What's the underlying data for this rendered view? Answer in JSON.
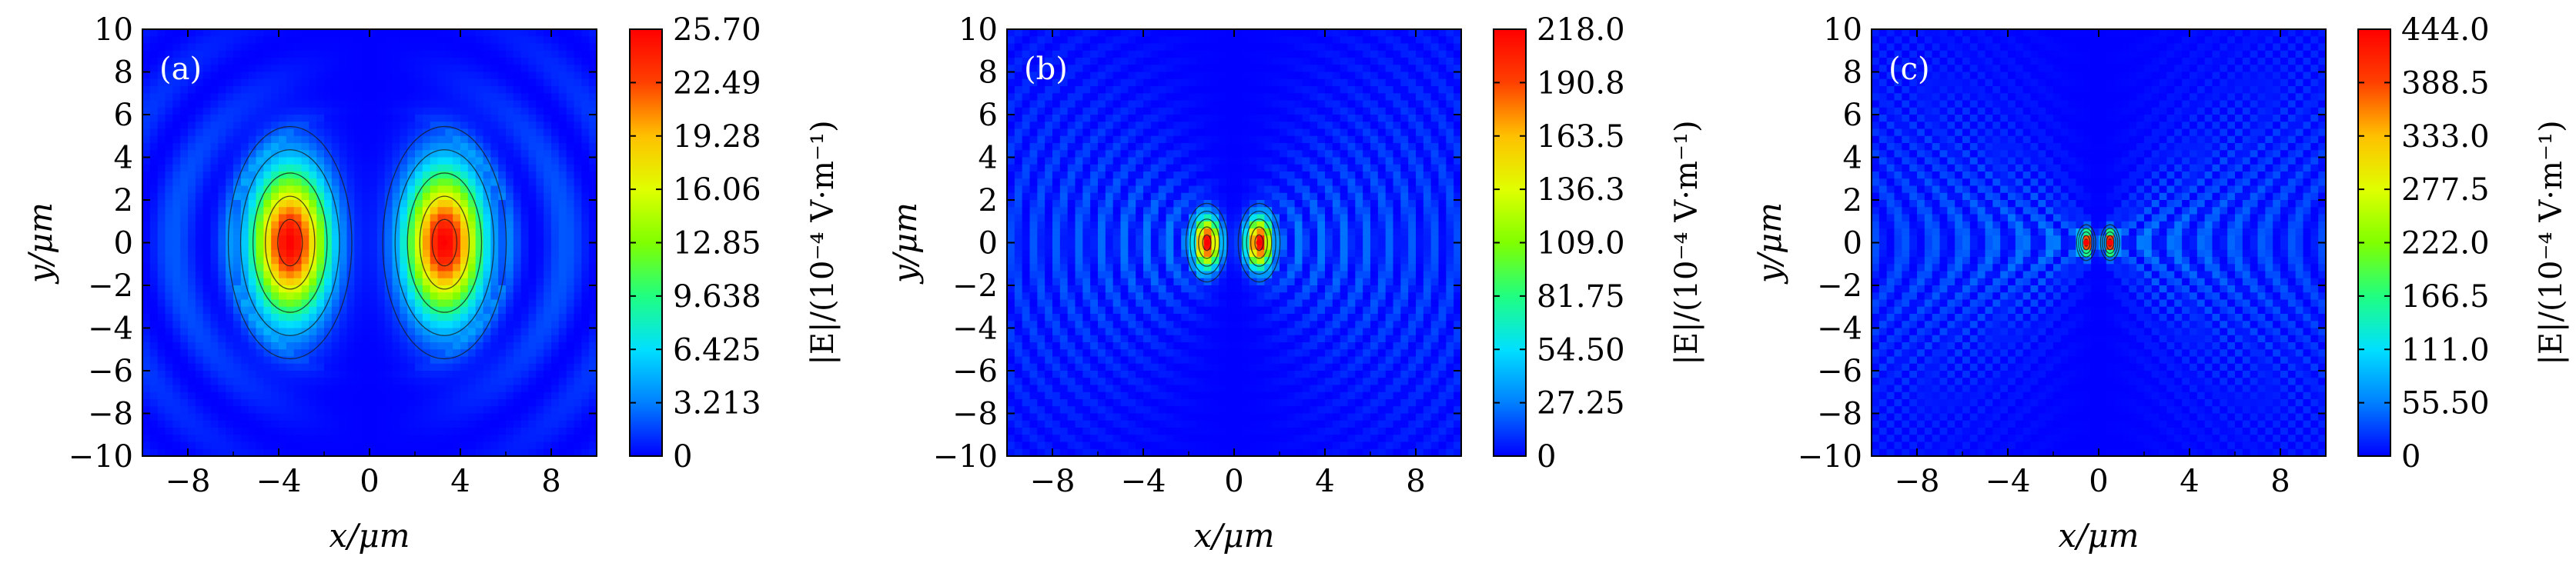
{
  "colors": {
    "colormap": [
      "#0000ff",
      "#0080ff",
      "#00e0ff",
      "#20ff80",
      "#80ff00",
      "#e0ff00",
      "#ffc000",
      "#ff4000",
      "#ff0000"
    ],
    "contour_line": "#1a1a1a"
  },
  "chart_data": [
    {
      "type": "heatmap",
      "panel_label": "(a)",
      "xlabel": "x/μm",
      "ylabel": "y/μm",
      "xlim": [
        -10,
        10
      ],
      "ylim": [
        -10,
        10
      ],
      "xticks": [
        "−8",
        "−4",
        "0",
        "4",
        "8"
      ],
      "yticks": [
        "10",
        "8",
        "6",
        "4",
        "2",
        "0",
        "−2",
        "−4",
        "−6",
        "−8",
        "−10"
      ],
      "colorbar": {
        "label": "|E|/(10⁻⁴ V·m⁻¹)",
        "min": 0,
        "max": 25.7,
        "ticks": [
          "25.70",
          "22.49",
          "19.28",
          "16.06",
          "12.85",
          "9.638",
          "6.425",
          "3.213",
          "0"
        ]
      },
      "peaks": [
        {
          "x": -3.5,
          "y": 0,
          "value": 25.7
        },
        {
          "x": 3.3,
          "y": 0,
          "value": 25.7
        }
      ]
    },
    {
      "type": "heatmap",
      "panel_label": "(b)",
      "xlabel": "x/μm",
      "ylabel": "y/μm",
      "xlim": [
        -10,
        10
      ],
      "ylim": [
        -10,
        10
      ],
      "xticks": [
        "−8",
        "−4",
        "0",
        "4",
        "8"
      ],
      "yticks": [
        "10",
        "8",
        "6",
        "4",
        "2",
        "0",
        "−2",
        "−4",
        "−6",
        "−8",
        "−10"
      ],
      "colorbar": {
        "label": "|E|/(10⁻⁴ V·m⁻¹)",
        "min": 0,
        "max": 218.0,
        "ticks": [
          "218.0",
          "190.8",
          "163.5",
          "136.3",
          "109.0",
          "81.75",
          "54.50",
          "27.25",
          "0"
        ]
      },
      "peaks": [
        {
          "x": -1.2,
          "y": 0,
          "value": 218.0
        },
        {
          "x": 1.1,
          "y": 0,
          "value": 218.0
        }
      ]
    },
    {
      "type": "heatmap",
      "panel_label": "(c)",
      "xlabel": "x/μm",
      "ylabel": "y/μm",
      "xlim": [
        -10,
        10
      ],
      "ylim": [
        -10,
        10
      ],
      "xticks": [
        "−8",
        "−4",
        "0",
        "4",
        "8"
      ],
      "yticks": [
        "10",
        "8",
        "6",
        "4",
        "2",
        "0",
        "−2",
        "−4",
        "−6",
        "−8",
        "−10"
      ],
      "colorbar": {
        "label": "|E|/(10⁻⁴ V·m⁻¹)",
        "min": 0,
        "max": 444.0,
        "ticks": [
          "444.0",
          "388.5",
          "333.0",
          "277.5",
          "222.0",
          "166.5",
          "111.0",
          "55.50",
          "0"
        ]
      },
      "peaks": [
        {
          "x": -0.55,
          "y": 0,
          "value": 444.0
        },
        {
          "x": 0.5,
          "y": 0,
          "value": 444.0
        }
      ]
    }
  ]
}
